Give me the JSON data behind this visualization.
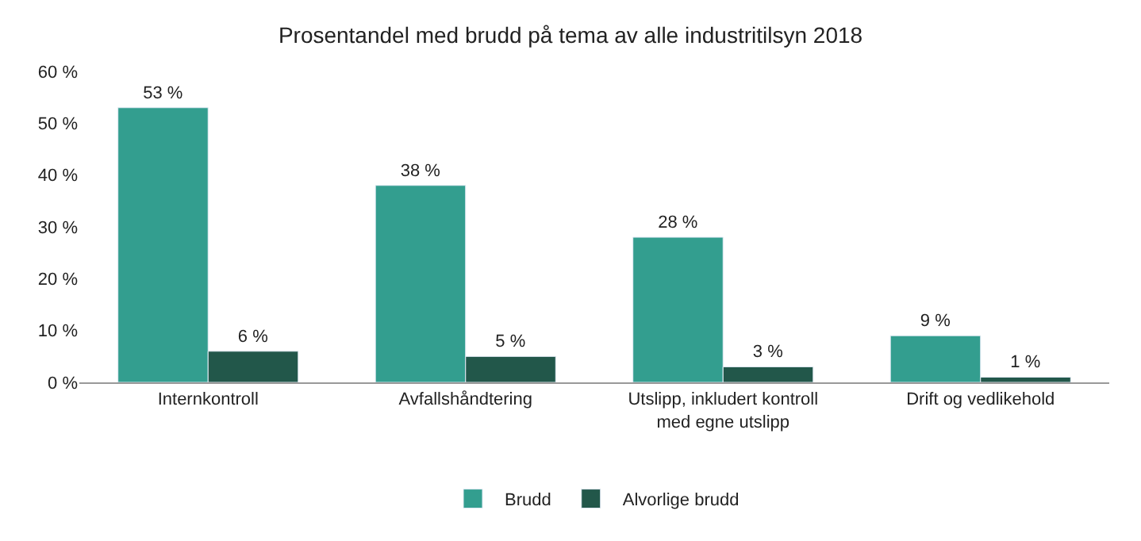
{
  "chart_data": {
    "type": "bar",
    "title": "Prosentandel med brudd på tema av alle industritilsyn 2018",
    "categories": [
      "Internkontroll",
      "Avfallshåndtering",
      "Utslipp, inkludert kontroll med egne utslipp",
      "Drift og vedlikehold"
    ],
    "series": [
      {
        "name": "Brudd",
        "color": "#339e8f",
        "values": [
          53,
          38,
          28,
          9
        ],
        "value_labels": [
          "53 %",
          "38 %",
          "28 %",
          "9 %"
        ]
      },
      {
        "name": "Alvorlige brudd",
        "color": "#22574a",
        "values": [
          6,
          5,
          3,
          1
        ],
        "value_labels": [
          "6 %",
          "5 %",
          "3 %",
          "1 %"
        ]
      }
    ],
    "ylim": [
      0,
      60
    ],
    "yticks": [
      {
        "value": 0,
        "label": "0 %"
      },
      {
        "value": 10,
        "label": "10 %"
      },
      {
        "value": 20,
        "label": "20 %"
      },
      {
        "value": 30,
        "label": "30 %"
      },
      {
        "value": 40,
        "label": "40 %"
      },
      {
        "value": 50,
        "label": "50 %"
      },
      {
        "value": 60,
        "label": "60 %"
      }
    ],
    "legend": "bottom"
  }
}
